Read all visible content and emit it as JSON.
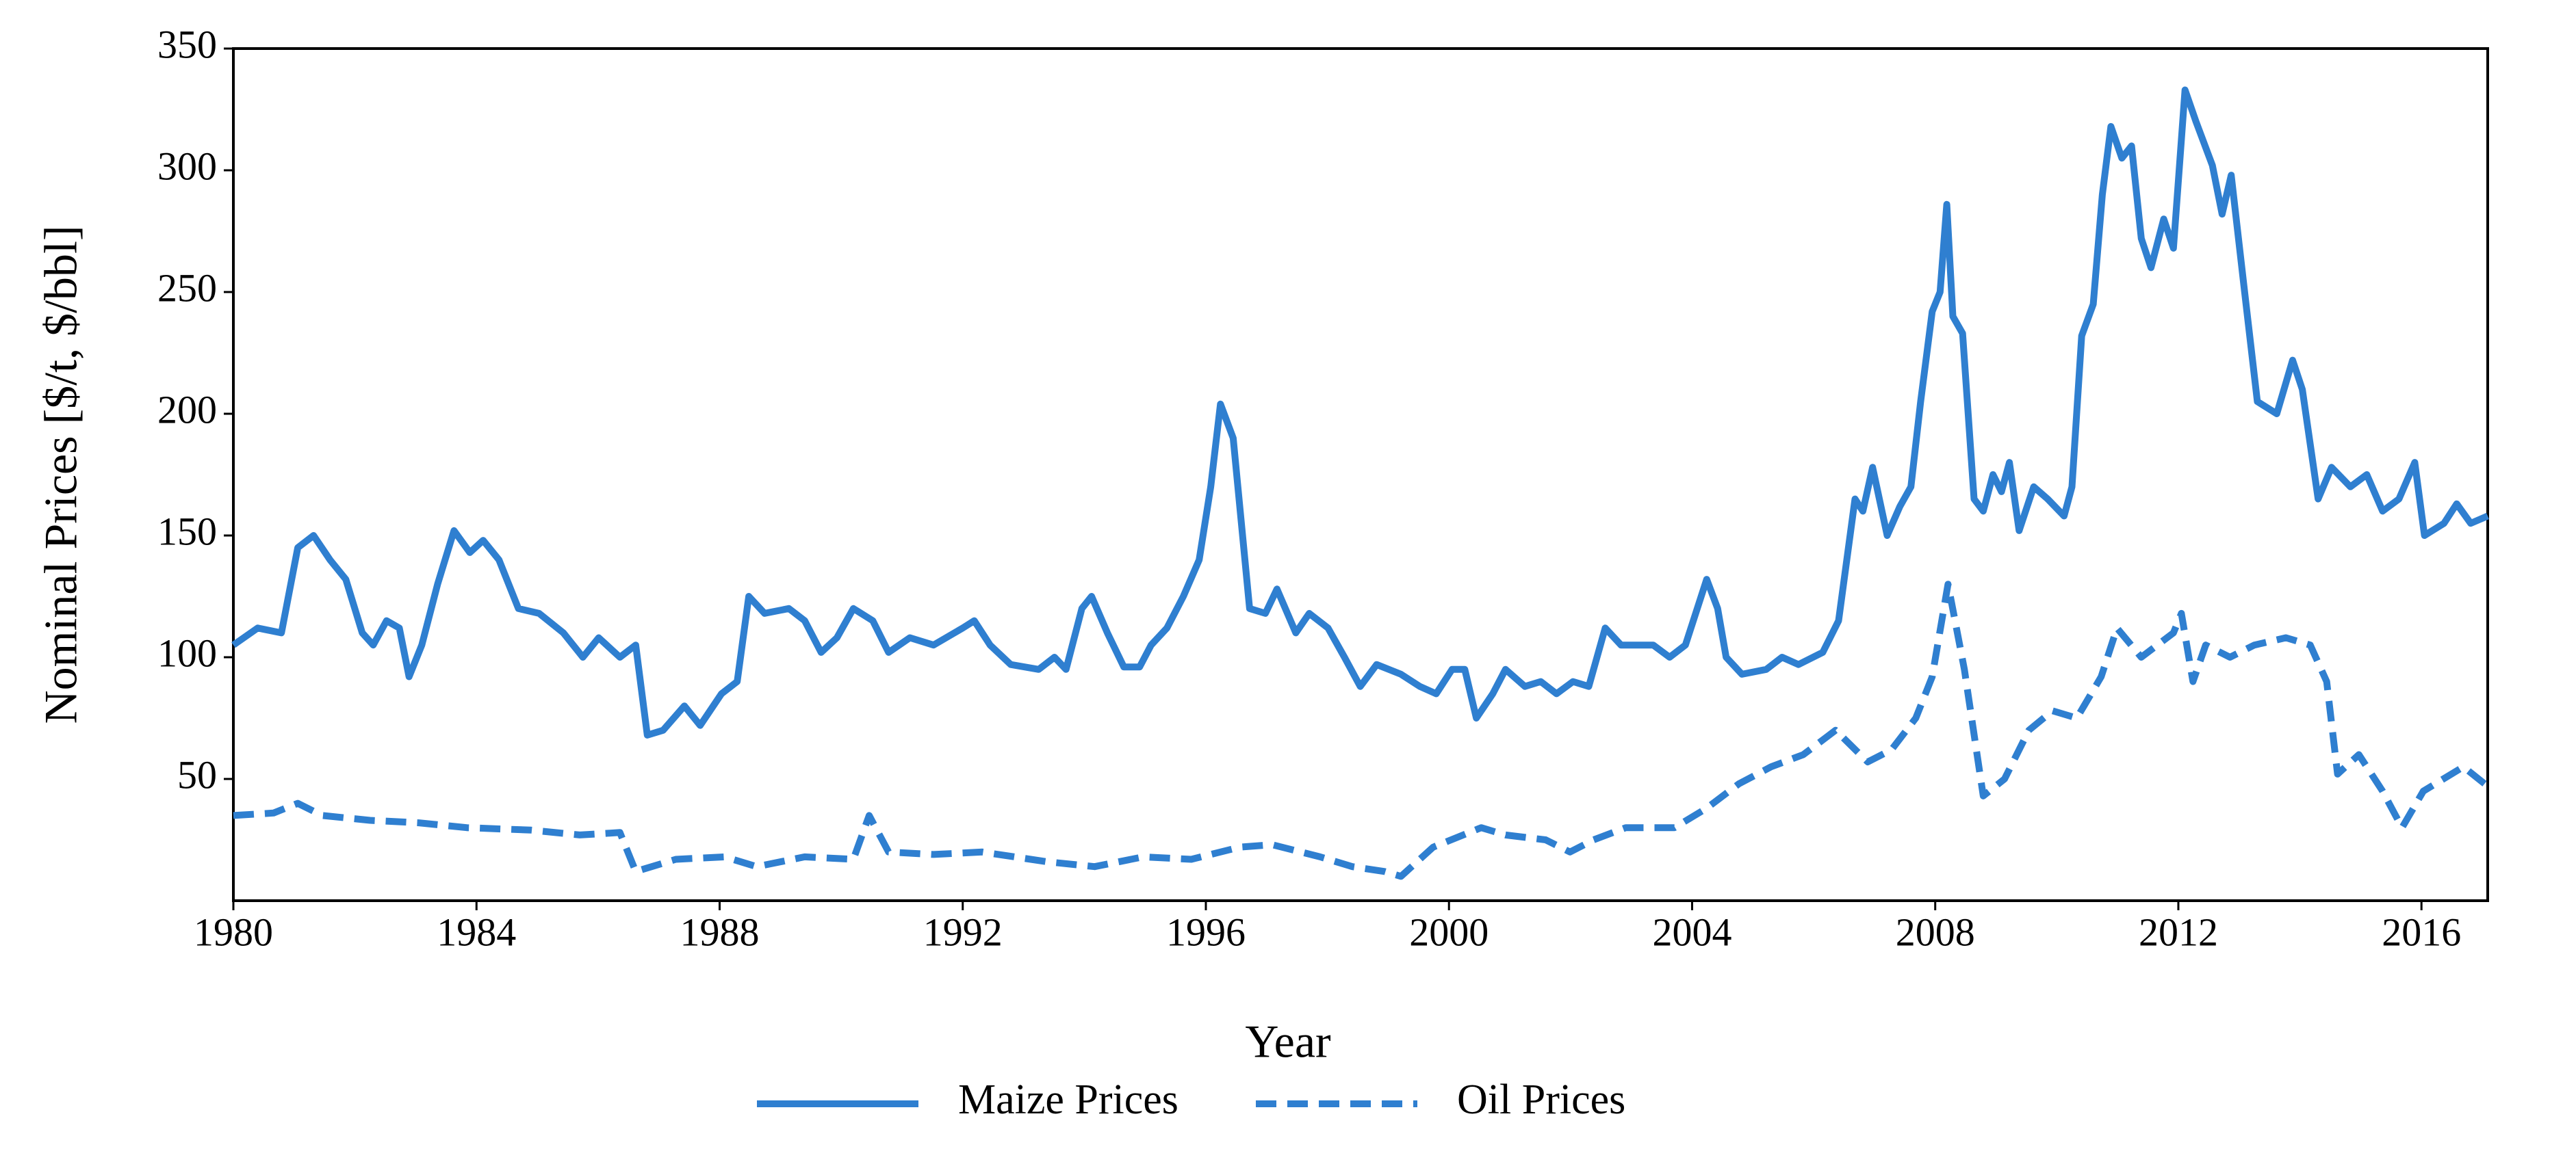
{
  "chart_data": {
    "type": "line",
    "xlabel": "Year",
    "ylabel": "Nominal Prices [$/t, $/bbl]",
    "xlim": [
      1980,
      2017.09
    ],
    "ylim": [
      0,
      350
    ],
    "xticks": [
      1980,
      1984,
      1988,
      1992,
      1996,
      2000,
      2004,
      2008,
      2012,
      2016
    ],
    "yticks": [
      50,
      100,
      150,
      200,
      250,
      300,
      350
    ],
    "grid": false,
    "legend": "bottom",
    "series": [
      {
        "name": "Maize Prices",
        "color": "#2f7fd0",
        "style": "solid",
        "x": [
          1980.0,
          1980.4,
          1980.79,
          1981.06,
          1981.32,
          1981.59,
          1981.85,
          1982.12,
          1982.3,
          1982.52,
          1982.73,
          1982.89,
          1983.1,
          1983.36,
          1983.63,
          1983.89,
          1984.11,
          1984.37,
          1984.69,
          1985.03,
          1985.43,
          1985.75,
          1986.01,
          1986.36,
          1986.62,
          1986.81,
          1987.07,
          1987.42,
          1987.68,
          1988.03,
          1988.29,
          1988.48,
          1988.74,
          1989.14,
          1989.4,
          1989.67,
          1989.93,
          1990.2,
          1990.52,
          1990.78,
          1991.13,
          1991.52,
          1992.0,
          1992.19,
          1992.45,
          1992.79,
          1993.25,
          1993.51,
          1993.7,
          1993.96,
          1994.12,
          1994.38,
          1994.65,
          1994.91,
          1995.1,
          1995.36,
          1995.63,
          1995.89,
          1996.08,
          1996.24,
          1996.45,
          1996.72,
          1996.98,
          1997.17,
          1997.48,
          1997.7,
          1998.01,
          1998.28,
          1998.54,
          1998.81,
          1999.21,
          1999.52,
          1999.79,
          2000.05,
          2000.26,
          2000.45,
          2000.72,
          2000.93,
          2001.25,
          2001.51,
          2001.77,
          2002.04,
          2002.3,
          2002.57,
          2002.83,
          2003.36,
          2003.63,
          2003.89,
          2004.24,
          2004.42,
          2004.56,
          2004.82,
          2005.22,
          2005.48,
          2005.75,
          2006.15,
          2006.41,
          2006.68,
          2006.81,
          2006.97,
          2007.21,
          2007.42,
          2007.6,
          2007.76,
          2007.95,
          2008.08,
          2008.19,
          2008.29,
          2008.45,
          2008.64,
          2008.79,
          2008.95,
          2009.09,
          2009.22,
          2009.38,
          2009.62,
          2009.85,
          2010.12,
          2010.25,
          2010.41,
          2010.6,
          2010.75,
          2010.89,
          2011.07,
          2011.23,
          2011.39,
          2011.55,
          2011.76,
          2011.92,
          2012.11,
          2012.29,
          2012.56,
          2012.72,
          2012.87,
          2013.09,
          2013.3,
          2013.62,
          2013.88,
          2014.04,
          2014.3,
          2014.52,
          2014.83,
          2015.1,
          2015.36,
          2015.63,
          2015.89,
          2016.05,
          2016.37,
          2016.58,
          2016.81,
          2017.09
        ],
        "values": [
          105,
          112,
          110,
          145,
          150,
          140,
          132,
          110,
          105,
          115,
          112,
          92,
          105,
          130,
          152,
          143,
          148,
          140,
          120,
          118,
          110,
          100,
          108,
          100,
          105,
          68,
          70,
          80,
          72,
          85,
          90,
          125,
          118,
          120,
          115,
          102,
          108,
          120,
          115,
          102,
          108,
          105,
          112,
          115,
          105,
          97,
          95,
          100,
          95,
          120,
          125,
          110,
          96,
          96,
          105,
          112,
          125,
          140,
          170,
          204,
          190,
          120,
          118,
          128,
          110,
          118,
          112,
          100,
          88,
          97,
          93,
          88,
          85,
          95,
          95,
          75,
          85,
          95,
          88,
          90,
          85,
          90,
          88,
          112,
          105,
          105,
          100,
          105,
          132,
          120,
          100,
          93,
          95,
          100,
          97,
          102,
          115,
          165,
          160,
          178,
          150,
          162,
          170,
          205,
          242,
          250,
          286,
          240,
          233,
          165,
          160,
          175,
          168,
          180,
          152,
          170,
          165,
          158,
          170,
          232,
          245,
          290,
          318,
          305,
          310,
          272,
          260,
          280,
          268,
          333,
          320,
          302,
          282,
          298,
          250,
          205,
          200,
          222,
          210,
          165,
          178,
          170,
          175,
          160,
          165,
          180,
          150,
          155,
          163,
          155,
          158
        ]
      },
      {
        "name": "Oil Prices",
        "color": "#2f7fd0",
        "style": "dashed",
        "x": [
          1980.0,
          1980.66,
          1981.06,
          1981.46,
          1982.25,
          1983.05,
          1983.84,
          1984.9,
          1985.7,
          1986.36,
          1986.62,
          1987.28,
          1988.08,
          1988.61,
          1989.4,
          1990.2,
          1990.46,
          1990.78,
          1991.52,
          1992.32,
          1993.38,
          1994.17,
          1994.97,
          1995.76,
          1996.56,
          1997.09,
          1997.88,
          1998.41,
          1998.94,
          1999.21,
          1999.74,
          2000.53,
          2000.93,
          2001.59,
          2001.99,
          2002.38,
          2002.91,
          2003.71,
          2004.24,
          2004.77,
          2005.3,
          2005.83,
          2006.36,
          2006.89,
          2007.28,
          2007.68,
          2007.95,
          2008.21,
          2008.48,
          2008.79,
          2009.14,
          2009.54,
          2009.93,
          2010.33,
          2010.73,
          2010.99,
          2011.39,
          2011.92,
          2012.05,
          2012.24,
          2012.45,
          2012.85,
          2013.25,
          2013.77,
          2014.17,
          2014.44,
          2014.62,
          2014.97,
          2015.36,
          2015.68,
          2016.03,
          2016.69,
          2017.09
        ],
        "values": [
          35,
          36,
          40,
          35,
          33,
          32,
          30,
          29,
          27,
          28,
          12,
          17,
          18,
          14,
          18,
          17,
          35,
          20,
          19,
          20,
          16,
          14,
          18,
          17,
          22,
          23,
          18,
          14,
          12,
          10,
          22,
          30,
          27,
          25,
          20,
          25,
          30,
          30,
          38,
          48,
          55,
          60,
          70,
          57,
          62,
          75,
          92,
          130,
          95,
          43,
          50,
          70,
          78,
          75,
          92,
          112,
          100,
          110,
          118,
          90,
          105,
          100,
          105,
          108,
          105,
          90,
          52,
          60,
          45,
          30,
          45,
          55,
          47
        ]
      }
    ]
  }
}
